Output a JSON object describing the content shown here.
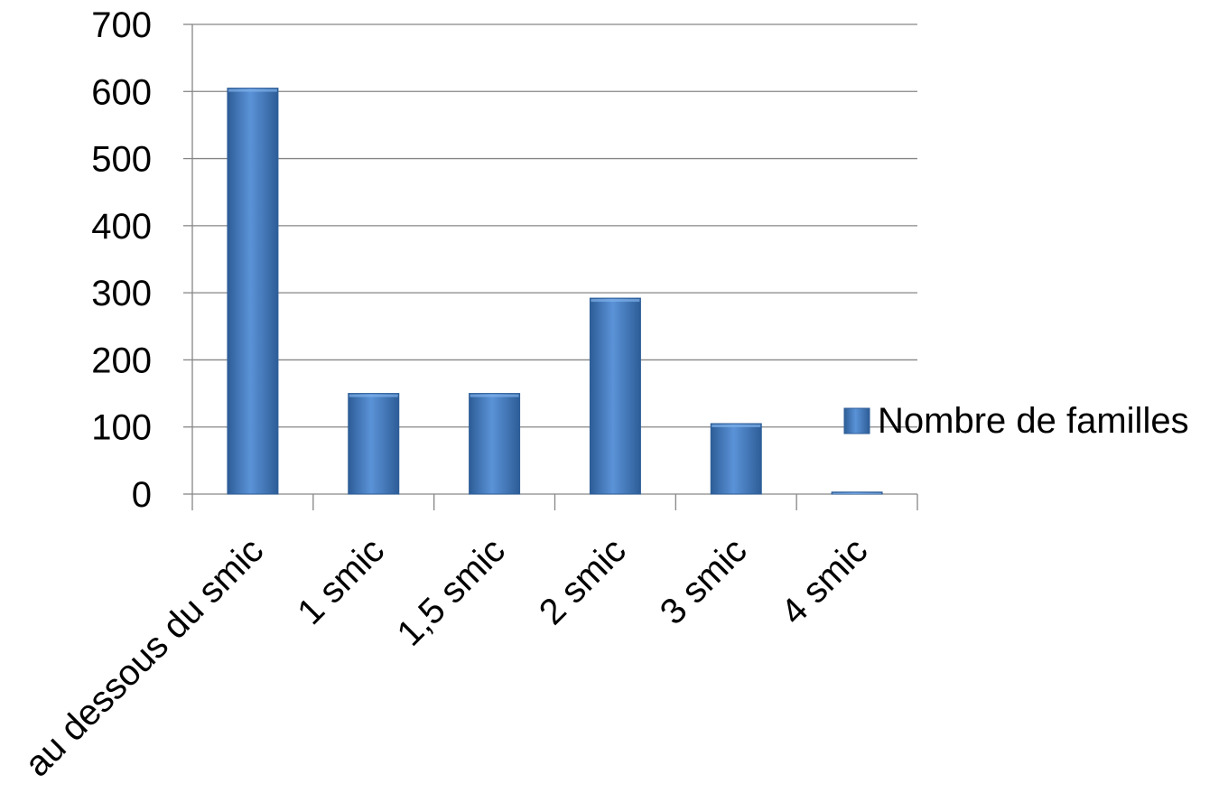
{
  "chart_data": {
    "type": "bar",
    "categories": [
      "au dessous du smic",
      "1 smic",
      "1,5 smic",
      "2 smic",
      "3 smic",
      "4 smic"
    ],
    "series": [
      {
        "name": "Nombre de familles",
        "values": [
          605,
          150,
          150,
          292,
          105,
          3
        ]
      }
    ],
    "ylim": [
      0,
      700
    ],
    "yticks": [
      0,
      100,
      200,
      300,
      400,
      500,
      600,
      700
    ],
    "ytick_labels": [
      "0",
      "100",
      "200",
      "300",
      "400",
      "500",
      "600",
      "700"
    ],
    "grid": true,
    "legend": {
      "position": "right",
      "entries": [
        "Nombre de familles"
      ]
    },
    "colors": {
      "bar": "#4a7ebb",
      "bar_light": "#5b93d8",
      "bar_dark": "#2f5f99",
      "grid": "#868686",
      "axis": "#868686"
    }
  }
}
